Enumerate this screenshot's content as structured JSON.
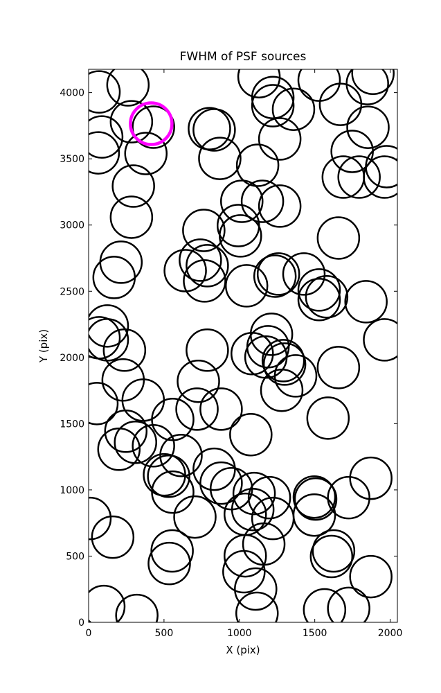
{
  "chart_data": {
    "type": "scatter",
    "title": "FWHM of PSF sources",
    "x_label": "X (pix)",
    "y_label": "Y (pix)",
    "xlim": [
      0,
      2048
    ],
    "ylim": [
      0,
      4176
    ],
    "xticks": [
      0,
      500,
      1000,
      1500,
      2000
    ],
    "yticks": [
      0,
      500,
      1000,
      1500,
      2000,
      2500,
      3000,
      3500,
      4000
    ],
    "series": [
      {
        "color": "#000000",
        "x": [
          69,
          261,
          87,
          64,
          284,
          430,
          380,
          297,
          284,
          215,
          169,
          124,
          69,
          124,
          238,
          229,
          362,
          55,
          247,
          311,
          201,
          430,
          558,
          613,
          531,
          558,
          503,
          705,
          9,
          160,
          554,
          535,
          101,
          320,
          801,
          833,
          870,
          1121,
          1016,
          1153,
          1268,
          993,
          1007,
          764,
          741,
          787,
          641,
          769,
          1048,
          1236,
          1259,
          1428,
          1529,
          1529,
          1579,
          1657,
          1840,
          1963,
          787,
          728,
          719,
          879,
          1085,
          1213,
          1190,
          1176,
          1291,
          1300,
          1373,
          1281,
          1657,
          1588,
          1076,
          833,
          879,
          947,
          1039,
          1089,
          1098,
          1199,
          1222,
          1162,
          1039,
          1030,
          1108,
          1117,
          1497,
          1506,
          1497,
          1725,
          1872,
          1625,
          1611,
          1872,
          1565,
          1725,
          1130,
          1222,
          1222,
          1359,
          1268,
          1529,
          1671,
          1849,
          1886,
          1853,
          1748,
          1689,
          1794,
          1963,
          1977
        ],
        "y": [
          4005,
          4058,
          3665,
          3545,
          3780,
          3739,
          3540,
          3294,
          3059,
          2719,
          2604,
          2238,
          2149,
          2133,
          2055,
          1830,
          1678,
          1652,
          1443,
          1359,
          1307,
          1333,
          1532,
          1260,
          1103,
          983,
          1114,
          795,
          784,
          643,
          539,
          444,
          120,
          52,
          3728,
          3718,
          3503,
          3451,
          3179,
          3179,
          3143,
          2996,
          2918,
          2959,
          2735,
          2693,
          2656,
          2578,
          2541,
          2614,
          2630,
          2630,
          2510,
          2437,
          2458,
          2902,
          2421,
          2133,
          2055,
          1820,
          1610,
          1610,
          2029,
          2175,
          2081,
          2003,
          1976,
          1950,
          1861,
          1752,
          1924,
          1542,
          1417,
          1156,
          1051,
          1009,
          816,
          852,
          973,
          941,
          784,
          591,
          502,
          382,
          251,
          68,
          946,
          931,
          810,
          941,
          1088,
          539,
          497,
          345,
          94,
          105,
          4120,
          3963,
          3901,
          3874,
          3650,
          4094,
          3911,
          4068,
          4146,
          3738,
          3556,
          3362,
          3362,
          3362,
          3441
        ]
      },
      {
        "color": "#ff00ff",
        "x": [
          415
        ],
        "y": [
          3765
        ]
      }
    ]
  }
}
